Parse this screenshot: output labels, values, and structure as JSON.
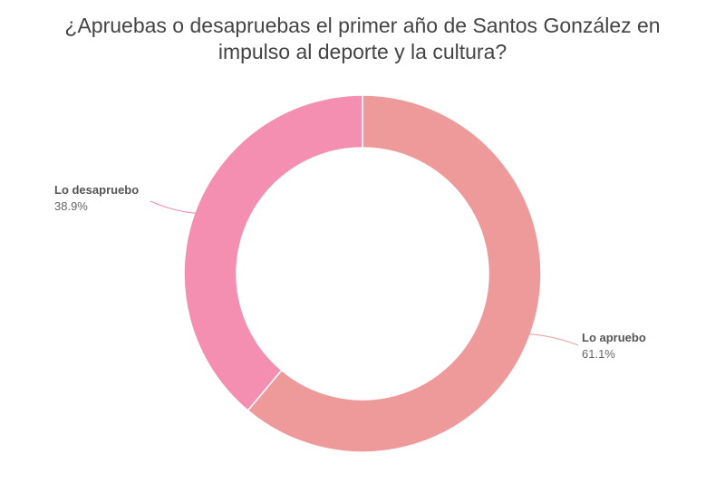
{
  "chart_data": {
    "type": "pie",
    "title": "¿Apruebas o desapruebas el primer año de Santos González en impulso al deporte y la cultura?",
    "donut": true,
    "slices": [
      {
        "label": "Lo apruebo",
        "value": 61.1,
        "display": "61.1%",
        "color": "#ef9a9a"
      },
      {
        "label": "Lo desapruebo",
        "value": 38.9,
        "display": "38.9%",
        "color": "#f48fb1"
      }
    ],
    "legend": "none"
  }
}
